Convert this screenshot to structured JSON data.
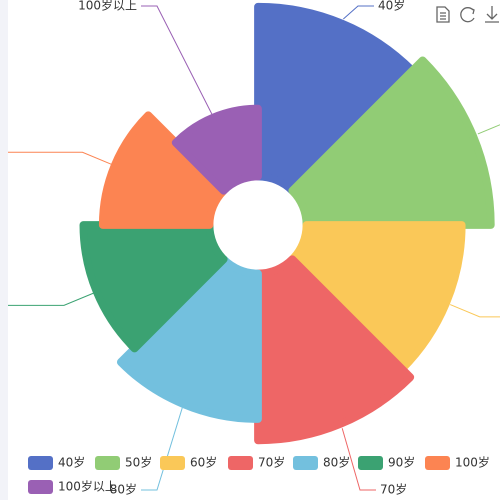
{
  "chart_data": {
    "type": "rose",
    "categories": [
      "40岁",
      "50岁",
      "60岁",
      "70岁",
      "80岁",
      "90岁",
      "100岁",
      "100岁以上"
    ],
    "values": [
      225,
      240,
      210,
      222,
      200,
      180,
      160,
      120
    ],
    "colors": [
      "#5470c6",
      "#91cc75",
      "#fac858",
      "#ee6666",
      "#73c0de",
      "#3ba272",
      "#fc8452",
      "#9a60b4"
    ],
    "legend": "bottom"
  }
}
